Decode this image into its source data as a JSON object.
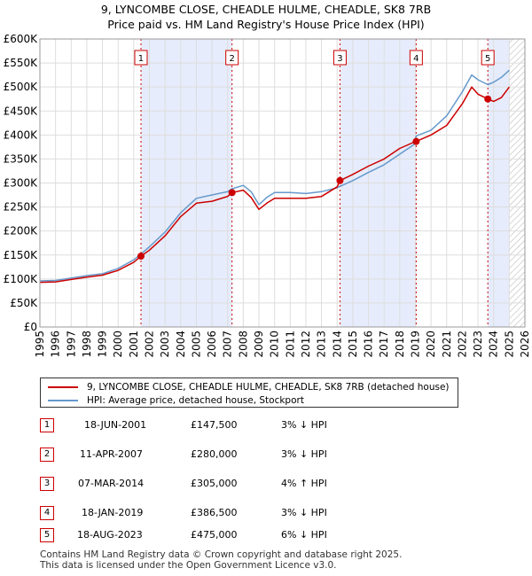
{
  "title_line1": "9, LYNCOMBE CLOSE, CHEADLE HULME, CHEADLE, SK8 7RB",
  "title_line2": "Price paid vs. HM Land Registry's House Price Index (HPI)",
  "legend": {
    "property_label": "9, LYNCOMBE CLOSE, CHEADLE HULME, CHEADLE, SK8 7RB (detached house)",
    "hpi_label": "HPI: Average price, detached house, Stockport"
  },
  "sales": [
    {
      "num": "1",
      "date": "18-JUN-2001",
      "price": "£147,500",
      "hpi": "3% ↓ HPI"
    },
    {
      "num": "2",
      "date": "11-APR-2007",
      "price": "£280,000",
      "hpi": "3% ↓ HPI"
    },
    {
      "num": "3",
      "date": "07-MAR-2014",
      "price": "£305,000",
      "hpi": "4% ↑ HPI"
    },
    {
      "num": "4",
      "date": "18-JAN-2019",
      "price": "£386,500",
      "hpi": "3% ↓ HPI"
    },
    {
      "num": "5",
      "date": "18-AUG-2023",
      "price": "£475,000",
      "hpi": "6% ↓ HPI"
    }
  ],
  "footer_line1": "Contains HM Land Registry data © Crown copyright and database right 2025.",
  "footer_line2": "This data is licensed under the Open Government Licence v3.0.",
  "colors": {
    "property": "#cc0000",
    "hpi": "#6699cc",
    "shade": "#e6ecfb",
    "hatch": "#bbbbbb"
  },
  "chart_data": {
    "type": "line",
    "xlim": [
      1995,
      2026
    ],
    "ylim": [
      0,
      600000
    ],
    "x_ticks": [
      "1995",
      "1996",
      "1997",
      "1998",
      "1999",
      "2000",
      "2001",
      "2002",
      "2003",
      "2004",
      "2005",
      "2006",
      "2007",
      "2008",
      "2009",
      "2010",
      "2011",
      "2012",
      "2013",
      "2014",
      "2015",
      "2016",
      "2017",
      "2018",
      "2019",
      "2020",
      "2021",
      "2022",
      "2023",
      "2024",
      "2025",
      "2026"
    ],
    "y_ticks": [
      {
        "value": 0,
        "label": "£0"
      },
      {
        "value": 50000,
        "label": "£50K"
      },
      {
        "value": 100000,
        "label": "£100K"
      },
      {
        "value": 150000,
        "label": "£150K"
      },
      {
        "value": 200000,
        "label": "£200K"
      },
      {
        "value": 250000,
        "label": "£250K"
      },
      {
        "value": 300000,
        "label": "£300K"
      },
      {
        "value": 350000,
        "label": "£350K"
      },
      {
        "value": 400000,
        "label": "£400K"
      },
      {
        "value": 450000,
        "label": "£450K"
      },
      {
        "value": 500000,
        "label": "£500K"
      },
      {
        "value": 550000,
        "label": "£550K"
      },
      {
        "value": 600000,
        "label": "£600K"
      }
    ],
    "hpi_end_year": 2025.0,
    "shaded_ranges": [
      [
        2001.46,
        2007.28
      ],
      [
        2014.18,
        2019.05
      ],
      [
        2023.63,
        2025.0
      ]
    ],
    "sale_markers": [
      {
        "label": "1",
        "x": 2001.46,
        "y": 147500
      },
      {
        "label": "2",
        "x": 2007.28,
        "y": 280000
      },
      {
        "label": "3",
        "x": 2014.18,
        "y": 305000
      },
      {
        "label": "4",
        "x": 2019.05,
        "y": 386500
      },
      {
        "label": "5",
        "x": 2023.63,
        "y": 475000
      }
    ],
    "series": [
      {
        "name": "9, LYNCOMBE CLOSE, CHEADLE HULME, CHEADLE, SK8 7RB (detached house)",
        "x": [
          1995,
          1996,
          1997,
          1998,
          1999,
          2000,
          2001,
          2001.46,
          2002,
          2003,
          2004,
          2005,
          2006,
          2007,
          2007.28,
          2008,
          2008.5,
          2009,
          2009.5,
          2010,
          2011,
          2012,
          2013,
          2014,
          2014.18,
          2015,
          2016,
          2017,
          2018,
          2018.9,
          2019.05,
          2020,
          2021,
          2022,
          2022.6,
          2023,
          2023.63,
          2024,
          2024.5,
          2025
        ],
        "values": [
          93000,
          94000,
          99000,
          104000,
          108000,
          118000,
          135000,
          147500,
          160000,
          190000,
          230000,
          258000,
          262000,
          272000,
          280000,
          285000,
          270000,
          245000,
          258000,
          268000,
          268000,
          268000,
          272000,
          292000,
          305000,
          318000,
          335000,
          350000,
          372000,
          385000,
          386500,
          400000,
          420000,
          465000,
          500000,
          485000,
          475000,
          470000,
          478000,
          500000
        ]
      },
      {
        "name": "HPI: Average price, detached house, Stockport",
        "x": [
          1995,
          1996,
          1997,
          1998,
          1999,
          2000,
          2001,
          2001.46,
          2002,
          2003,
          2004,
          2005,
          2006,
          2007,
          2007.28,
          2008,
          2008.5,
          2009,
          2009.5,
          2010,
          2011,
          2012,
          2013,
          2014,
          2014.18,
          2015,
          2016,
          2017,
          2018,
          2018.9,
          2019.05,
          2020,
          2021,
          2022,
          2022.6,
          2023,
          2023.63,
          2024,
          2024.5,
          2025
        ],
        "values": [
          96000,
          97000,
          102000,
          107000,
          111000,
          122000,
          140000,
          152000,
          167000,
          198000,
          238000,
          268000,
          275000,
          282000,
          288000,
          295000,
          282000,
          255000,
          270000,
          280000,
          280000,
          278000,
          282000,
          290000,
          293000,
          305000,
          322000,
          338000,
          360000,
          380000,
          398000,
          410000,
          440000,
          490000,
          525000,
          515000,
          505000,
          510000,
          520000,
          535000
        ]
      }
    ]
  }
}
